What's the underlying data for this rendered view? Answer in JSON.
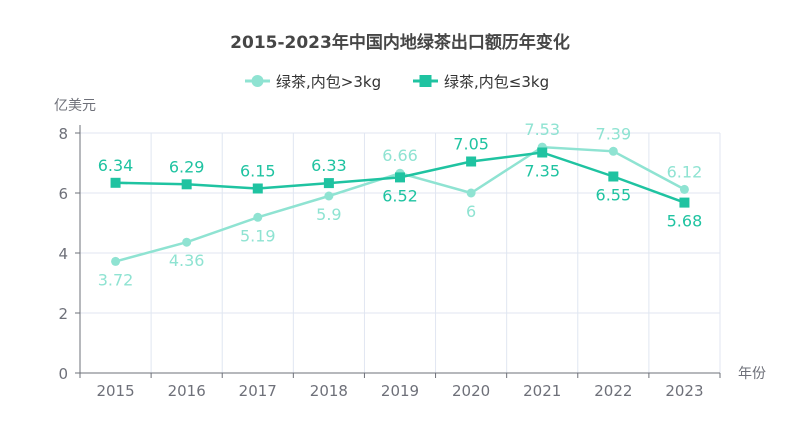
{
  "chart_data": {
    "type": "line",
    "title": "2015-2023年中国内地绿茶出口额历年变化",
    "xlabel": "年份",
    "ylabel": "亿美元",
    "ylim": [
      0,
      8
    ],
    "yticks": [
      0,
      2,
      4,
      6,
      8
    ],
    "categories": [
      "2015",
      "2016",
      "2017",
      "2018",
      "2019",
      "2020",
      "2021",
      "2022",
      "2023"
    ],
    "legend_position": "top-center",
    "series": [
      {
        "name": "绿茶,内包>3kg",
        "marker": "circle",
        "color": "#8fe3d2",
        "values": [
          3.72,
          4.36,
          5.19,
          5.9,
          6.66,
          6,
          7.53,
          7.39,
          6.12
        ]
      },
      {
        "name": "绿茶,内包≤3kg",
        "marker": "square",
        "color": "#1fc3a1",
        "values": [
          6.34,
          6.29,
          6.15,
          6.33,
          6.52,
          7.05,
          7.35,
          6.55,
          5.68
        ]
      }
    ]
  }
}
